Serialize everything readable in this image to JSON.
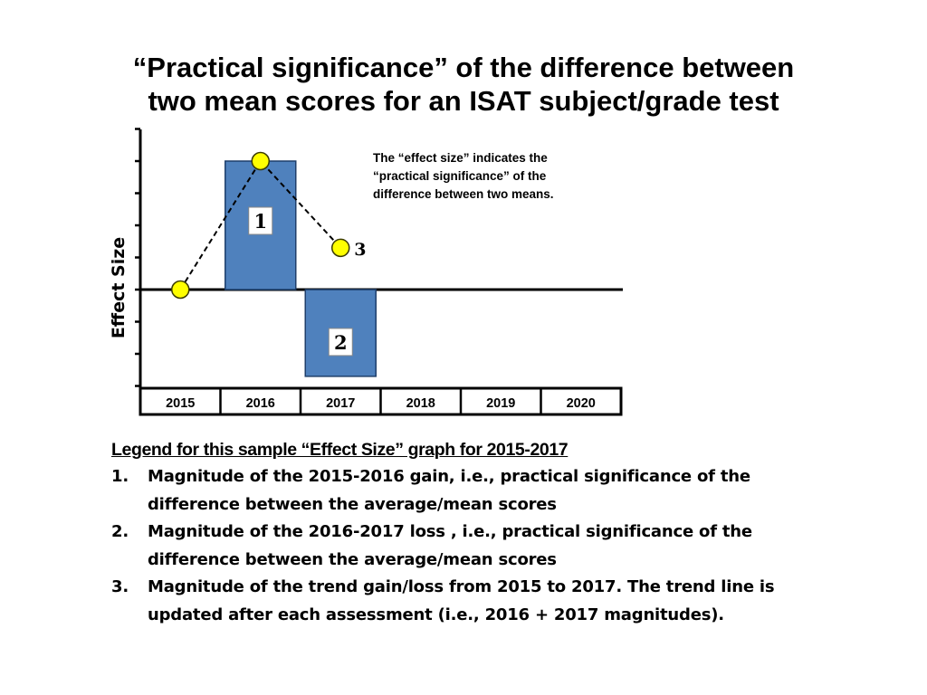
{
  "title": {
    "line1": "“Practical significance” of the difference between",
    "line2": "two mean scores for an ISAT subject/grade test"
  },
  "chart_data": {
    "type": "bar",
    "ylabel": "Effect Size",
    "categories": [
      "2015",
      "2016",
      "2017",
      "2018",
      "2019",
      "2020"
    ],
    "ylim": [
      -4,
      5
    ],
    "bars": [
      {
        "category": "2016",
        "value": 4,
        "label": "1"
      },
      {
        "category": "2017",
        "value": -2.7,
        "label": "2"
      }
    ],
    "trend_line": {
      "style": "dashed",
      "points": [
        {
          "category": "2015",
          "value": 0
        },
        {
          "category": "2016",
          "value": 4
        },
        {
          "category": "2017",
          "value": 1.3,
          "label": "3"
        }
      ]
    },
    "annotation": {
      "line1": "The “effect size” indicates the",
      "line2": "“practical significance” of the",
      "line3": "difference between two means."
    },
    "colors": {
      "bar": "#4f81bd",
      "bar_edge": "#1f3f6b",
      "point": "#ffff00",
      "point_edge": "#3a3a00",
      "axis": "#000000"
    }
  },
  "legend": {
    "title": "Legend for this sample “Effect Size” graph for 2015-2017",
    "items": [
      {
        "num": "1.",
        "line1": "Magnitude of the 2015-2016 gain, i.e., practical significance of the",
        "line2": "difference between the average/mean scores"
      },
      {
        "num": "2.",
        "line1": "Magnitude of the 2016-2017 loss , i.e., practical significance of the",
        "line2": "difference between the average/mean scores"
      },
      {
        "num": "3.",
        "line1": "Magnitude of the trend gain/loss from 2015 to 2017. The trend line is",
        "line2": "updated after each assessment (i.e., 2016  + 2017 magnitudes)."
      }
    ]
  }
}
